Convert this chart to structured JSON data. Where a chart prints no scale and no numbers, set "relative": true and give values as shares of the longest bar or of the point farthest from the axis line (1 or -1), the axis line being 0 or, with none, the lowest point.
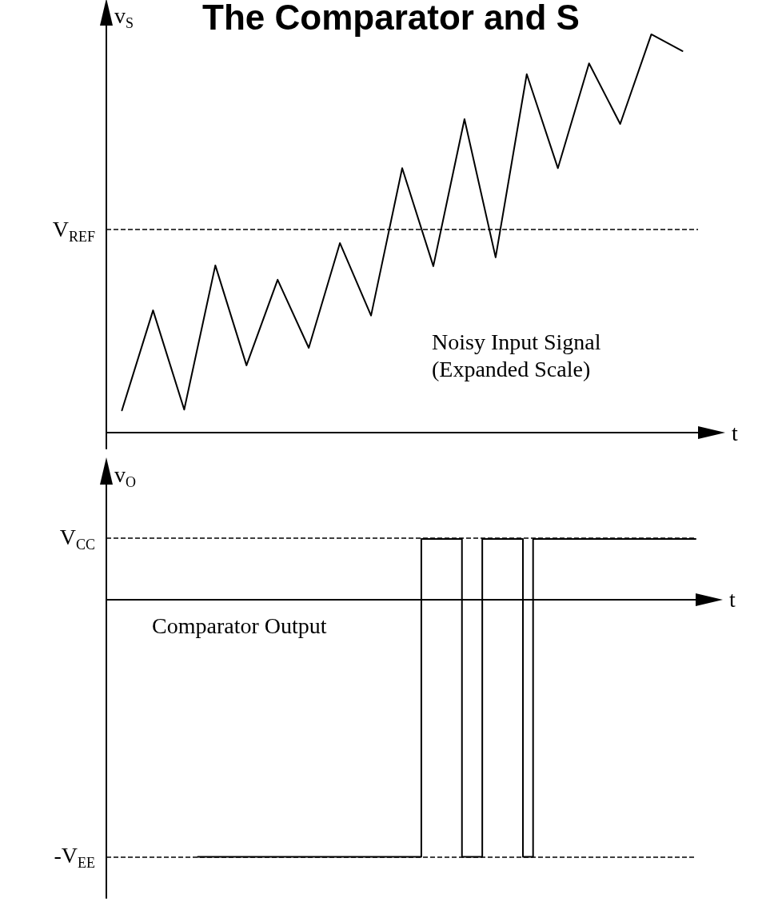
{
  "chart_data": [
    {
      "type": "line",
      "title": "The Comparator and S",
      "xlabel": "t",
      "ylabel": "v$_{S}$",
      "relative": true,
      "marker": "none",
      "line_style": "solid",
      "categories": [
        null,
        null,
        null,
        null,
        null,
        null,
        null,
        null,
        null,
        null,
        null,
        null,
        null,
        null,
        null,
        null,
        null,
        null,
        null
      ],
      "series": [
        {
          "color": "#000000",
          "values": [
            0.056,
            0.307,
            0.058,
            0.42,
            0.169,
            0.384,
            0.213,
            0.476,
            0.294,
            0.664,
            0.418,
            0.787,
            0.44,
            0.9,
            0.664,
            0.927,
            0.775,
            1,
            0.958
          ]
        }
      ],
      "ref_lines": [
        {
          "axis": "y",
          "value": 0.507,
          "label": "V$_{REF}$",
          "color": "#000000",
          "line_style": "dashed"
        }
      ],
      "annotations": [
        "Noisy Input Signal\n(Expanded Scale)"
      ]
    },
    {
      "type": "step",
      "xlabel": "t",
      "ylabel": "v$_{O}$",
      "relative": true,
      "marker": "none",
      "line_style": "solid",
      "categories": [
        null,
        null,
        null,
        null,
        null,
        null,
        null,
        null,
        null,
        null,
        null,
        null,
        null,
        null,
        null,
        null,
        null,
        null,
        null,
        null,
        null,
        null,
        null,
        null,
        null,
        null,
        null,
        null,
        null,
        null,
        null,
        null,
        null,
        null,
        null,
        null,
        null,
        null,
        null,
        null,
        null,
        null,
        null,
        null,
        null,
        null,
        null,
        null,
        null,
        null,
        null,
        null,
        null,
        null,
        null,
        null,
        null,
        null,
        null
      ],
      "series": [
        {
          "color": "#000000",
          "values": [
            null,
            null,
            null,
            null,
            null,
            null,
            null,
            null,
            null,
            -1,
            -1,
            -1,
            -1,
            -1,
            -1,
            -1,
            -1,
            -1,
            -1,
            -1,
            -1,
            -1,
            -1,
            -1,
            -1,
            -1,
            -1,
            -1,
            -1,
            -1,
            -1,
            0.236,
            0.236,
            0.236,
            0.236,
            -1,
            -1,
            0.236,
            0.236,
            0.236,
            0.236,
            -1,
            0.236,
            0.236,
            0.236,
            0.236,
            0.236,
            0.236,
            0.236,
            0.236,
            0.236,
            0.236,
            0.236,
            0.236,
            0.236,
            0.236,
            0.236,
            0.236,
            0.236
          ]
        }
      ],
      "ref_lines": [
        {
          "axis": "y",
          "value": 0.236,
          "label": "V$_{CC}$",
          "color": "#000000",
          "line_style": "dashed"
        },
        {
          "axis": "y",
          "value": -1,
          "label": "-V$_{EE}$",
          "color": "#000000",
          "line_style": "dashed"
        }
      ],
      "annotations": [
        "Comparator Output"
      ]
    }
  ]
}
